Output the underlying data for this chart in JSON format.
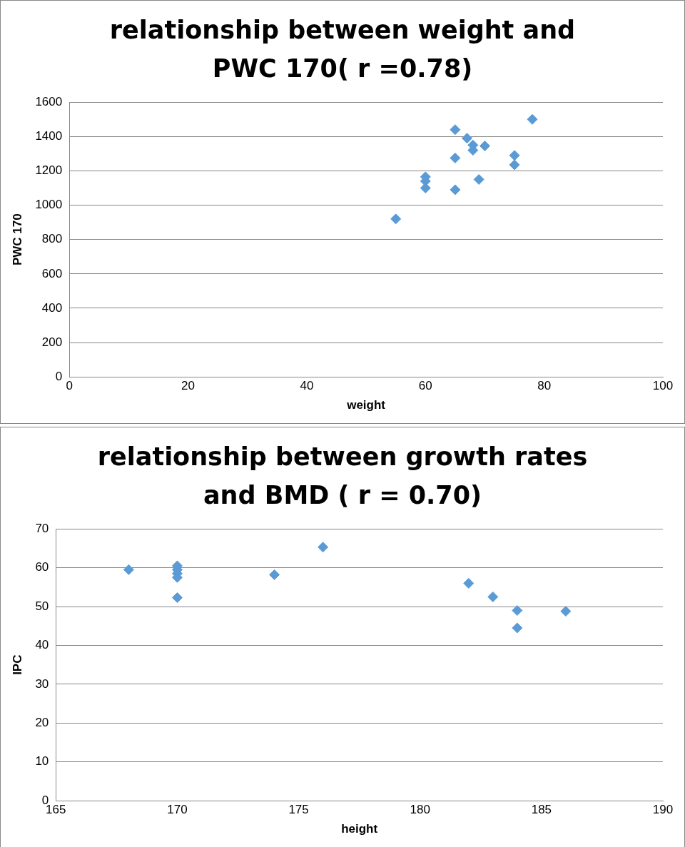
{
  "chart_data": [
    {
      "type": "scatter",
      "title": "relationship between weight and PWC 170( r =0.78)",
      "xlabel": "weight",
      "ylabel": "PWC 170",
      "series": [
        {
          "color": "#5b9bd5",
          "x": [
            55,
            60,
            60,
            60,
            65,
            65,
            65,
            67,
            68,
            68,
            69,
            70,
            75,
            75,
            78
          ],
          "values": [
            920,
            1100,
            1140,
            1165,
            1440,
            1275,
            1090,
            1390,
            1350,
            1320,
            1150,
            1345,
            1290,
            1235,
            1500
          ]
        }
      ],
      "xlim": [
        0,
        100
      ],
      "xticks": [
        0,
        20,
        40,
        60,
        80,
        100
      ],
      "ylim": [
        0,
        1600
      ],
      "yticks": [
        0,
        200,
        400,
        600,
        800,
        1000,
        1200,
        1400,
        1600
      ],
      "grid": "y",
      "marker": "diamond",
      "legend": false
    },
    {
      "type": "scatter",
      "title": "relationship between growth rates and BMD ( r = 0.70)",
      "xlabel": "height",
      "ylabel": "IPC",
      "series": [
        {
          "color": "#5b9bd5",
          "x": [
            168,
            170,
            170,
            170,
            170,
            170,
            174,
            176,
            182,
            183,
            184,
            184,
            186
          ],
          "values": [
            59.5,
            60.5,
            59.5,
            58.5,
            57.5,
            52.3,
            58.2,
            65.3,
            56,
            52.5,
            49,
            44.5,
            48.8
          ]
        }
      ],
      "xlim": [
        165,
        190
      ],
      "xticks": [
        165,
        170,
        175,
        180,
        185,
        190
      ],
      "ylim": [
        0,
        70
      ],
      "yticks": [
        0,
        10,
        20,
        30,
        40,
        50,
        60,
        70
      ],
      "grid": "y",
      "marker": "diamond",
      "legend": false
    }
  ]
}
